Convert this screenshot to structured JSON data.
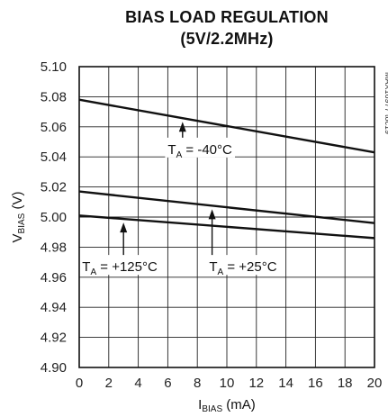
{
  "chart_data": {
    "type": "line",
    "title": "BIAS LOAD REGULATION",
    "subtitle": "(5V/2.2MHz)",
    "watermark": "MAX16977 toc19",
    "xlabel": {
      "main": "I",
      "sub": "BIAS",
      "unit": " (mA)"
    },
    "ylabel": {
      "main": "V",
      "sub": "BIAS",
      "unit": " (V)"
    },
    "xlim": [
      0,
      20
    ],
    "ylim": [
      4.9,
      5.1
    ],
    "x_ticks": [
      "0",
      "2",
      "4",
      "6",
      "8",
      "10",
      "12",
      "14",
      "16",
      "18",
      "20"
    ],
    "y_ticks": [
      "4.90",
      "4.92",
      "4.94",
      "4.96",
      "4.98",
      "5.00",
      "5.02",
      "5.04",
      "5.06",
      "5.08",
      "5.10"
    ],
    "grid": true,
    "series": [
      {
        "label_main": "T",
        "label_sub": "A",
        "label_rest": " = -40°C",
        "x": [
          0,
          20
        ],
        "y": [
          5.078,
          5.043
        ]
      },
      {
        "label_main": "T",
        "label_sub": "A",
        "label_rest": " = +25°C",
        "x": [
          0,
          20
        ],
        "y": [
          5.017,
          4.996
        ]
      },
      {
        "label_main": "T",
        "label_sub": "A",
        "label_rest": " = +125°C",
        "x": [
          0,
          20
        ],
        "y": [
          5.001,
          4.986
        ]
      }
    ],
    "annotations": [
      {
        "series": 0,
        "arrow_x": 7,
        "label_x": 6,
        "label_y": 5.045
      },
      {
        "series": 1,
        "arrow_x": 9,
        "label_x": 8.8,
        "label_y": 4.967
      },
      {
        "series": 2,
        "arrow_x": 3,
        "label_x": 0.2,
        "label_y": 4.967
      }
    ]
  }
}
